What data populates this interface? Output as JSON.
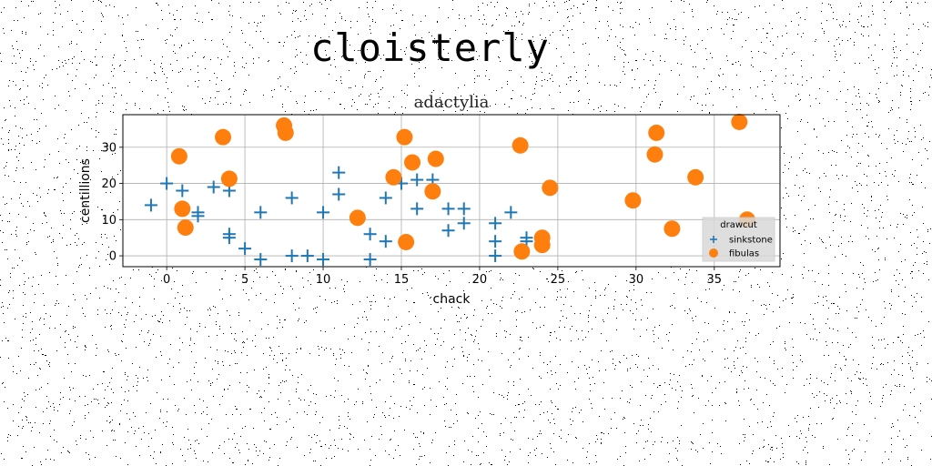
{
  "figure": {
    "title": "cloisterly"
  },
  "chart_data": {
    "type": "scatter",
    "title": "adactylia",
    "xlabel": "chack",
    "ylabel": "centillions",
    "xlim": [
      -2.8,
      39.2
    ],
    "ylim": [
      -3,
      39
    ],
    "xticks": [
      0,
      5,
      10,
      15,
      20,
      25,
      30,
      35
    ],
    "yticks": [
      0,
      10,
      20,
      30
    ],
    "grid": true,
    "legend": {
      "title": "drawcut",
      "placement": "lower-right"
    },
    "colors": {
      "sinkstone": "#1f77b4",
      "fibulas": "#ff7f0e"
    },
    "series": [
      {
        "name": "sinkstone",
        "marker": "plus",
        "points": [
          [
            -1,
            14
          ],
          [
            0,
            20
          ],
          [
            1,
            18
          ],
          [
            2,
            12
          ],
          [
            2,
            11
          ],
          [
            3,
            19
          ],
          [
            4,
            18
          ],
          [
            4,
            6
          ],
          [
            4,
            5
          ],
          [
            5,
            2
          ],
          [
            6,
            12
          ],
          [
            6,
            -1
          ],
          [
            8,
            16
          ],
          [
            8,
            0
          ],
          [
            9,
            0
          ],
          [
            10,
            12
          ],
          [
            10,
            -1
          ],
          [
            11,
            23
          ],
          [
            11,
            17
          ],
          [
            13,
            6
          ],
          [
            13,
            -1
          ],
          [
            14,
            16
          ],
          [
            14,
            4
          ],
          [
            15,
            20
          ],
          [
            16,
            21
          ],
          [
            16,
            13
          ],
          [
            17,
            21
          ],
          [
            18,
            13
          ],
          [
            18,
            7
          ],
          [
            19,
            13
          ],
          [
            19,
            9
          ],
          [
            21,
            9
          ],
          [
            21,
            4
          ],
          [
            21,
            0
          ],
          [
            22,
            12
          ],
          [
            23,
            5
          ],
          [
            23,
            4
          ]
        ]
      },
      {
        "name": "fibulas",
        "marker": "circle",
        "points": [
          [
            0.8,
            27.5
          ],
          [
            1,
            13
          ],
          [
            1.2,
            7.8
          ],
          [
            3.6,
            32.8
          ],
          [
            4,
            21.3
          ],
          [
            7.5,
            36
          ],
          [
            7.6,
            34
          ],
          [
            12.2,
            10.5
          ],
          [
            14.5,
            21.7
          ],
          [
            15.2,
            32.8
          ],
          [
            15.3,
            3.8
          ],
          [
            15.7,
            25.8
          ],
          [
            17,
            17.8
          ],
          [
            17.2,
            26.8
          ],
          [
            22.6,
            30.5
          ],
          [
            22.7,
            1.2
          ],
          [
            24,
            5
          ],
          [
            24,
            3
          ],
          [
            24.5,
            18.8
          ],
          [
            29.8,
            15.3
          ],
          [
            31.2,
            28
          ],
          [
            31.3,
            34
          ],
          [
            32.3,
            7.5
          ],
          [
            33.8,
            21.7
          ],
          [
            36.6,
            37
          ],
          [
            37.1,
            10
          ]
        ]
      }
    ]
  }
}
